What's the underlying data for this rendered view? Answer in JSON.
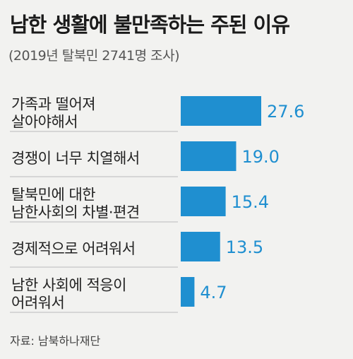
{
  "chart_data": {
    "type": "bar",
    "orientation": "horizontal",
    "title": "남한 생활에 불만족하는 주된 이유",
    "subtitle": "(2019년 탈북민 2741명 조사)",
    "categories": [
      [
        "가족과 떨어져",
        "살아야해서"
      ],
      [
        "경쟁이 너무 치열해서"
      ],
      [
        "탈북민에 대한",
        "남한사회의 차별·편견"
      ],
      [
        "경제적으로 어려워서"
      ],
      [
        "남한 사회에 적응이",
        "어려워서"
      ]
    ],
    "values": [
      27.6,
      19.0,
      15.4,
      13.5,
      4.7
    ],
    "value_labels": [
      "27.6",
      "19.0",
      "15.4",
      "13.5",
      "4.7"
    ],
    "xlim": [
      0,
      27.6
    ],
    "bar_color": "#1f8fd0",
    "grid": false,
    "legend": "none",
    "source": "자료: 남북하나재단"
  }
}
